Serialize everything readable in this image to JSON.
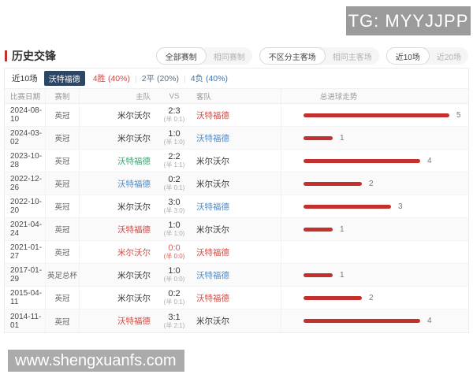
{
  "overlays": {
    "tg_badge": "TG: MYYJJPP",
    "watermark": "www.shengxuanfs.com"
  },
  "header": {
    "title": "历史交锋",
    "toggles": [
      {
        "options": [
          {
            "name": "toggle-all-competitions",
            "label": "全部赛制",
            "selected": true
          },
          {
            "name": "toggle-same-competition",
            "label": "相同赛制",
            "selected": false
          }
        ]
      },
      {
        "options": [
          {
            "name": "toggle-any-venue",
            "label": "不区分主客场",
            "selected": true
          },
          {
            "name": "toggle-same-venue",
            "label": "相同主客场",
            "selected": false
          }
        ]
      },
      {
        "options": [
          {
            "name": "toggle-last-10",
            "label": "近10场",
            "selected": true
          },
          {
            "name": "toggle-last-20",
            "label": "近20场",
            "selected": false
          }
        ]
      }
    ]
  },
  "summary": {
    "range_label": "近10场",
    "team_badge": "沃特福德",
    "badge_color": "#2d4663",
    "stats": [
      {
        "name": "stat-wins",
        "label": "4胜 (40%)",
        "color": "#cb4a44"
      },
      {
        "name": "stat-draws",
        "label": "2平 (20%)",
        "color": "#5f6b77"
      },
      {
        "name": "stat-losses",
        "label": "4负 (40%)",
        "color": "#3a77ad"
      }
    ]
  },
  "table": {
    "columns": [
      "比赛日期",
      "赛制",
      "主队",
      "VS",
      "客队",
      "总进球走势"
    ],
    "rows": [
      {
        "date": "2024-08-10",
        "comp": "英冠",
        "home": "米尔沃尔",
        "home_color": "dark",
        "score": "2:3",
        "half": "(半 0:1)",
        "score_color": "normal",
        "away": "沃特福德",
        "away_color": "red",
        "goals": 5
      },
      {
        "date": "2024-03-02",
        "comp": "英冠",
        "home": "米尔沃尔",
        "home_color": "dark",
        "score": "1:0",
        "half": "(半 1:0)",
        "score_color": "normal",
        "away": "沃特福德",
        "away_color": "blue",
        "goals": 1
      },
      {
        "date": "2023-10-28",
        "comp": "英冠",
        "home": "沃特福德",
        "home_color": "green",
        "score": "2:2",
        "half": "(半 1:1)",
        "score_color": "normal",
        "away": "米尔沃尔",
        "away_color": "dark",
        "goals": 4
      },
      {
        "date": "2022-12-26",
        "comp": "英冠",
        "home": "沃特福德",
        "home_color": "blue",
        "score": "0:2",
        "half": "(半 0:1)",
        "score_color": "normal",
        "away": "米尔沃尔",
        "away_color": "dark",
        "goals": 2
      },
      {
        "date": "2022-10-20",
        "comp": "英冠",
        "home": "米尔沃尔",
        "home_color": "dark",
        "score": "3:0",
        "half": "(半 3:0)",
        "score_color": "normal",
        "away": "沃特福德",
        "away_color": "blue",
        "goals": 3
      },
      {
        "date": "2021-04-24",
        "comp": "英冠",
        "home": "沃特福德",
        "home_color": "red",
        "score": "1:0",
        "half": "(半 1:0)",
        "score_color": "normal",
        "away": "米尔沃尔",
        "away_color": "dark",
        "goals": 1
      },
      {
        "date": "2021-01-27",
        "comp": "英冠",
        "home": "米尔沃尔",
        "home_color": "red",
        "score": "0:0",
        "half": "(半 0:0)",
        "score_color": "red",
        "away": "沃特福德",
        "away_color": "red",
        "goals": 0
      },
      {
        "date": "2017-01-29",
        "comp": "英足总杯",
        "home": "米尔沃尔",
        "home_color": "dark",
        "score": "1:0",
        "half": "(半 0:0)",
        "score_color": "normal",
        "away": "沃特福德",
        "away_color": "blue",
        "goals": 1
      },
      {
        "date": "2015-04-11",
        "comp": "英冠",
        "home": "米尔沃尔",
        "home_color": "dark",
        "score": "0:2",
        "half": "(半 0:1)",
        "score_color": "normal",
        "away": "沃特福德",
        "away_color": "red",
        "goals": 2
      },
      {
        "date": "2014-11-01",
        "comp": "英冠",
        "home": "沃特福德",
        "home_color": "red",
        "score": "3:1",
        "half": "(半 2:1)",
        "score_color": "normal",
        "away": "米尔沃尔",
        "away_color": "dark",
        "goals": 4
      }
    ]
  },
  "colors": {
    "bar": "#c4302b",
    "team_red": "#cf4b46",
    "team_blue": "#5089c5",
    "team_green": "#3fa26f",
    "team_dark": "#333333"
  }
}
